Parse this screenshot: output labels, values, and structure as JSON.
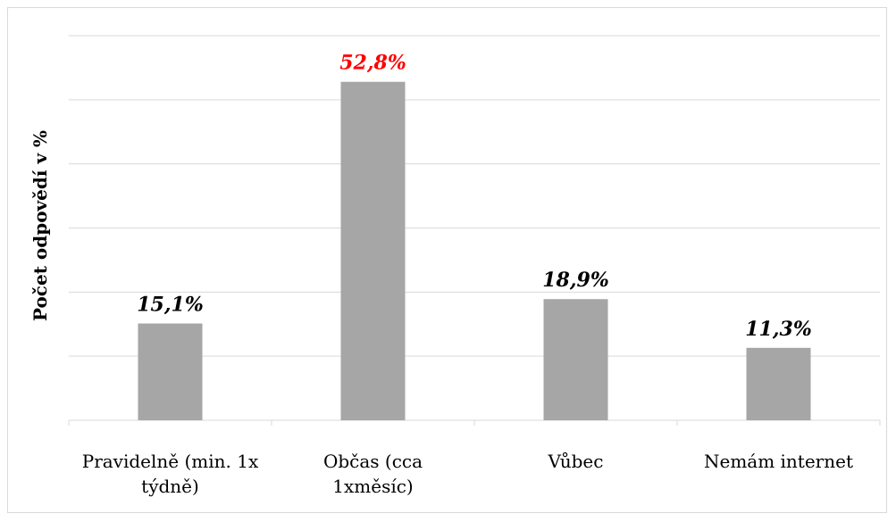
{
  "chart_data": {
    "type": "bar",
    "title": "",
    "xlabel": "",
    "ylabel": "Počet odpovědí v %",
    "ylim": [
      0,
      60
    ],
    "grid": true,
    "categories": [
      [
        "Pravidelně (min. 1x",
        "týdně)"
      ],
      [
        "Občas (cca",
        "1xměsíc)"
      ],
      [
        "Vůbec"
      ],
      [
        "Nemám internet"
      ]
    ],
    "values": [
      15.1,
      52.8,
      18.9,
      11.3
    ],
    "data_labels": [
      "15,1%",
      "52,8%",
      "18,9%",
      "11,3%"
    ],
    "colors": {
      "bar": "#a6a6a6",
      "gridline": "#d9d9d9",
      "label_default": "#000000",
      "label_highlight": "#ff0000"
    },
    "highlight_index": 1
  }
}
